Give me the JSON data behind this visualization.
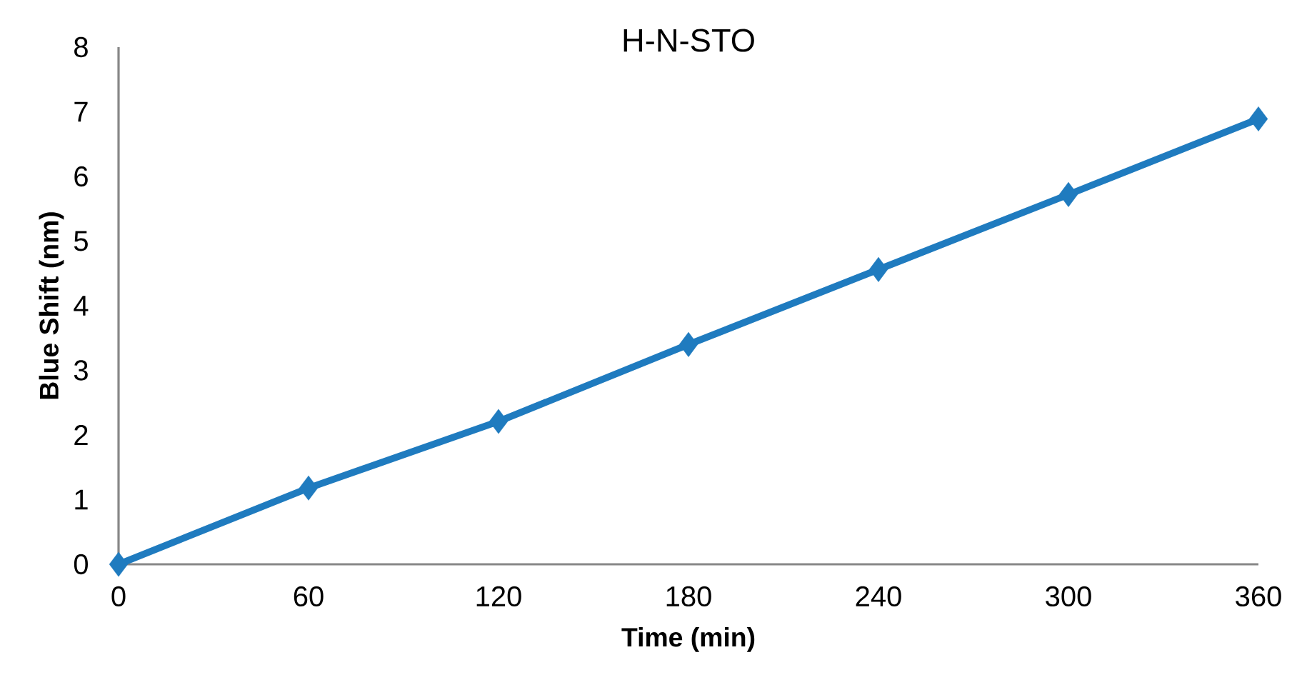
{
  "chart_data": {
    "type": "line",
    "title": "H-N-STO",
    "xlabel": "Time (min)",
    "ylabel": "Blue Shift (nm)",
    "x": [
      0,
      60,
      120,
      180,
      240,
      300,
      360
    ],
    "series": [
      {
        "color": "#1f7bbf",
        "values": [
          0,
          1.18,
          2.21,
          3.4,
          4.56,
          5.72,
          6.89
        ]
      }
    ],
    "xlim": [
      0,
      360
    ],
    "ylim": [
      0,
      8
    ],
    "xticks": [
      0,
      60,
      120,
      180,
      240,
      300,
      360
    ],
    "yticks": [
      0,
      1,
      2,
      3,
      4,
      5,
      6,
      7,
      8
    ],
    "marker": "diamond",
    "line_style": "solid"
  }
}
